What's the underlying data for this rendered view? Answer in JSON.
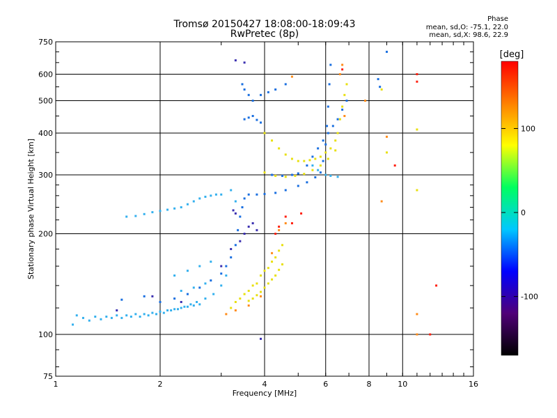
{
  "chart_data": {
    "type": "scatter",
    "title": "Tromsø 20150427 18:08:00-18:09:43",
    "subtitle": "RwPretec (8p)",
    "xlabel": "Frequency [MHz]",
    "ylabel": "Stationary phase Virtual Height [km]",
    "x_scale": "log",
    "y_scale": "log",
    "xlim": [
      1,
      16
    ],
    "ylim": [
      75,
      750
    ],
    "x_ticks": [
      1,
      2,
      4,
      6,
      8,
      10,
      16
    ],
    "y_ticks": [
      75,
      100,
      200,
      300,
      400,
      500,
      600,
      750
    ],
    "grid": true,
    "phase_info": {
      "title": "Phase",
      "line1": "mean, sd,O: -75.1, 22.0",
      "line2": "mean, sd,X:  98.6, 22.9"
    },
    "colorbar": {
      "label": "[deg]",
      "ticks": [
        "100",
        "0",
        "-100"
      ],
      "tick_values": [
        100,
        0,
        -100
      ],
      "range": [
        -170,
        180
      ],
      "colors": [
        "#000000",
        "#500078",
        "#0000ff",
        "#00c8ff",
        "#00ff60",
        "#ffff00",
        "#ff8000",
        "#ff0000"
      ]
    },
    "series": [
      {
        "color": "#33b0ee",
        "points": [
          [
            1.12,
            107
          ],
          [
            1.2,
            112
          ],
          [
            1.3,
            113
          ],
          [
            1.4,
            113
          ],
          [
            1.5,
            114
          ],
          [
            1.6,
            114
          ],
          [
            1.7,
            115
          ],
          [
            1.8,
            115
          ],
          [
            1.9,
            116
          ],
          [
            2.0,
            117
          ],
          [
            2.1,
            118
          ],
          [
            2.2,
            119
          ],
          [
            2.3,
            120
          ],
          [
            2.4,
            121
          ],
          [
            2.5,
            122
          ],
          [
            2.6,
            123
          ],
          [
            1.15,
            114
          ],
          [
            1.25,
            110
          ],
          [
            1.35,
            111
          ],
          [
            1.45,
            112
          ],
          [
            1.55,
            112
          ],
          [
            1.65,
            113
          ],
          [
            1.75,
            113
          ],
          [
            1.85,
            114
          ],
          [
            1.95,
            115
          ],
          [
            2.05,
            116
          ],
          [
            2.15,
            118
          ],
          [
            2.25,
            119
          ],
          [
            2.35,
            121
          ],
          [
            2.45,
            123
          ],
          [
            2.55,
            125
          ],
          [
            2.7,
            128
          ],
          [
            2.85,
            132
          ],
          [
            3.0,
            140
          ],
          [
            3.1,
            150
          ],
          [
            1.6,
            225
          ],
          [
            1.7,
            226
          ],
          [
            1.8,
            229
          ],
          [
            1.9,
            232
          ],
          [
            2.0,
            234
          ],
          [
            2.1,
            236
          ],
          [
            2.2,
            238
          ],
          [
            2.3,
            240
          ],
          [
            2.4,
            245
          ],
          [
            2.5,
            250
          ],
          [
            2.6,
            255
          ],
          [
            2.7,
            258
          ],
          [
            2.8,
            260
          ],
          [
            2.9,
            262
          ],
          [
            3.0,
            262
          ],
          [
            2.2,
            150
          ],
          [
            2.4,
            155
          ],
          [
            2.6,
            160
          ],
          [
            2.8,
            165
          ],
          [
            2.3,
            135
          ],
          [
            2.5,
            138
          ],
          [
            2.7,
            142
          ],
          [
            3.2,
            270
          ],
          [
            3.3,
            250
          ],
          [
            5.5,
            320
          ],
          [
            5.7,
            310
          ],
          [
            6.0,
            300
          ],
          [
            6.2,
            298
          ],
          [
            6.5,
            296
          ]
        ]
      },
      {
        "color": "#1a6fe0",
        "points": [
          [
            1.55,
            127
          ],
          [
            1.8,
            130
          ],
          [
            2.0,
            125
          ],
          [
            2.2,
            128
          ],
          [
            2.4,
            132
          ],
          [
            2.6,
            138
          ],
          [
            2.8,
            145
          ],
          [
            3.0,
            152
          ],
          [
            3.1,
            160
          ],
          [
            3.2,
            170
          ],
          [
            3.3,
            185
          ],
          [
            3.35,
            205
          ],
          [
            3.4,
            225
          ],
          [
            3.45,
            240
          ],
          [
            3.5,
            255
          ],
          [
            3.6,
            262
          ],
          [
            3.8,
            262
          ],
          [
            4.0,
            263
          ],
          [
            4.3,
            265
          ],
          [
            4.6,
            270
          ],
          [
            5.0,
            278
          ],
          [
            5.3,
            285
          ],
          [
            5.6,
            295
          ],
          [
            5.8,
            305
          ],
          [
            5.9,
            330
          ],
          [
            6.0,
            370
          ],
          [
            6.05,
            420
          ],
          [
            6.1,
            480
          ],
          [
            6.15,
            560
          ],
          [
            6.2,
            640
          ],
          [
            4.2,
            300
          ],
          [
            4.5,
            298
          ],
          [
            4.8,
            300
          ],
          [
            5.0,
            303
          ],
          [
            5.3,
            320
          ],
          [
            5.5,
            340
          ],
          [
            5.7,
            360
          ],
          [
            5.9,
            380
          ],
          [
            6.1,
            400
          ],
          [
            6.3,
            420
          ],
          [
            6.5,
            440
          ],
          [
            6.7,
            470
          ],
          [
            6.9,
            500
          ],
          [
            3.45,
            560
          ],
          [
            3.5,
            540
          ],
          [
            3.6,
            520
          ],
          [
            3.7,
            500
          ],
          [
            3.9,
            520
          ],
          [
            4.1,
            530
          ],
          [
            4.3,
            540
          ],
          [
            4.6,
            560
          ],
          [
            3.5,
            440
          ],
          [
            3.6,
            445
          ],
          [
            3.7,
            450
          ],
          [
            3.8,
            438
          ],
          [
            3.9,
            430
          ],
          [
            8.5,
            580
          ],
          [
            8.6,
            550
          ],
          [
            9.0,
            700
          ]
        ]
      },
      {
        "color": "#3a2fb0",
        "points": [
          [
            1.5,
            118
          ],
          [
            1.9,
            130
          ],
          [
            2.3,
            125
          ],
          [
            3.0,
            160
          ],
          [
            3.2,
            180
          ],
          [
            3.4,
            190
          ],
          [
            3.5,
            200
          ],
          [
            3.6,
            210
          ],
          [
            3.7,
            215
          ],
          [
            3.8,
            205
          ],
          [
            3.3,
            660
          ],
          [
            3.5,
            650
          ],
          [
            3.9,
            97
          ],
          [
            3.25,
            235
          ],
          [
            3.3,
            230
          ]
        ]
      },
      {
        "color": "#e8e010",
        "points": [
          [
            3.2,
            120
          ],
          [
            3.3,
            125
          ],
          [
            3.4,
            128
          ],
          [
            3.5,
            132
          ],
          [
            3.6,
            135
          ],
          [
            3.7,
            140
          ],
          [
            3.8,
            142
          ],
          [
            3.9,
            150
          ],
          [
            4.0,
            155
          ],
          [
            4.1,
            158
          ],
          [
            4.2,
            165
          ],
          [
            4.3,
            170
          ],
          [
            4.4,
            178
          ],
          [
            4.5,
            185
          ],
          [
            3.6,
            126
          ],
          [
            3.7,
            128
          ],
          [
            3.8,
            131
          ],
          [
            3.9,
            134
          ],
          [
            4.0,
            138
          ],
          [
            4.1,
            142
          ],
          [
            4.2,
            146
          ],
          [
            4.3,
            150
          ],
          [
            4.4,
            156
          ],
          [
            4.5,
            162
          ],
          [
            4.0,
            400
          ],
          [
            4.2,
            380
          ],
          [
            4.4,
            360
          ],
          [
            4.6,
            345
          ],
          [
            4.8,
            335
          ],
          [
            5.0,
            330
          ],
          [
            5.2,
            330
          ],
          [
            5.4,
            332
          ],
          [
            5.6,
            335
          ],
          [
            5.8,
            340
          ],
          [
            6.0,
            350
          ],
          [
            6.2,
            360
          ],
          [
            6.4,
            380
          ],
          [
            6.5,
            400
          ],
          [
            6.6,
            440
          ],
          [
            6.7,
            480
          ],
          [
            6.8,
            520
          ],
          [
            6.9,
            560
          ],
          [
            4.0,
            305
          ],
          [
            4.3,
            298
          ],
          [
            4.6,
            296
          ],
          [
            4.9,
            298
          ],
          [
            5.2,
            302
          ],
          [
            5.5,
            310
          ],
          [
            5.8,
            320
          ],
          [
            6.1,
            335
          ],
          [
            6.4,
            355
          ],
          [
            8.7,
            540
          ],
          [
            9.0,
            350
          ],
          [
            11.0,
            410
          ],
          [
            11.0,
            270
          ]
        ]
      },
      {
        "color": "#ff8c1a",
        "points": [
          [
            3.1,
            115
          ],
          [
            3.3,
            118
          ],
          [
            3.6,
            122
          ],
          [
            3.9,
            130
          ],
          [
            4.2,
            175
          ],
          [
            4.4,
            205
          ],
          [
            4.6,
            215
          ],
          [
            4.8,
            590
          ],
          [
            6.6,
            600
          ],
          [
            6.7,
            640
          ],
          [
            6.8,
            450
          ],
          [
            7.8,
            500
          ],
          [
            8.7,
            250
          ],
          [
            9.0,
            390
          ],
          [
            11.0,
            115
          ],
          [
            11.0,
            100
          ]
        ]
      },
      {
        "color": "#ff2010",
        "points": [
          [
            4.3,
            200
          ],
          [
            4.4,
            210
          ],
          [
            4.6,
            225
          ],
          [
            4.8,
            215
          ],
          [
            5.1,
            230
          ],
          [
            6.7,
            620
          ],
          [
            9.5,
            320
          ],
          [
            11.0,
            600
          ],
          [
            11.0,
            570
          ],
          [
            12.5,
            140
          ],
          [
            12.0,
            100
          ]
        ]
      }
    ]
  }
}
